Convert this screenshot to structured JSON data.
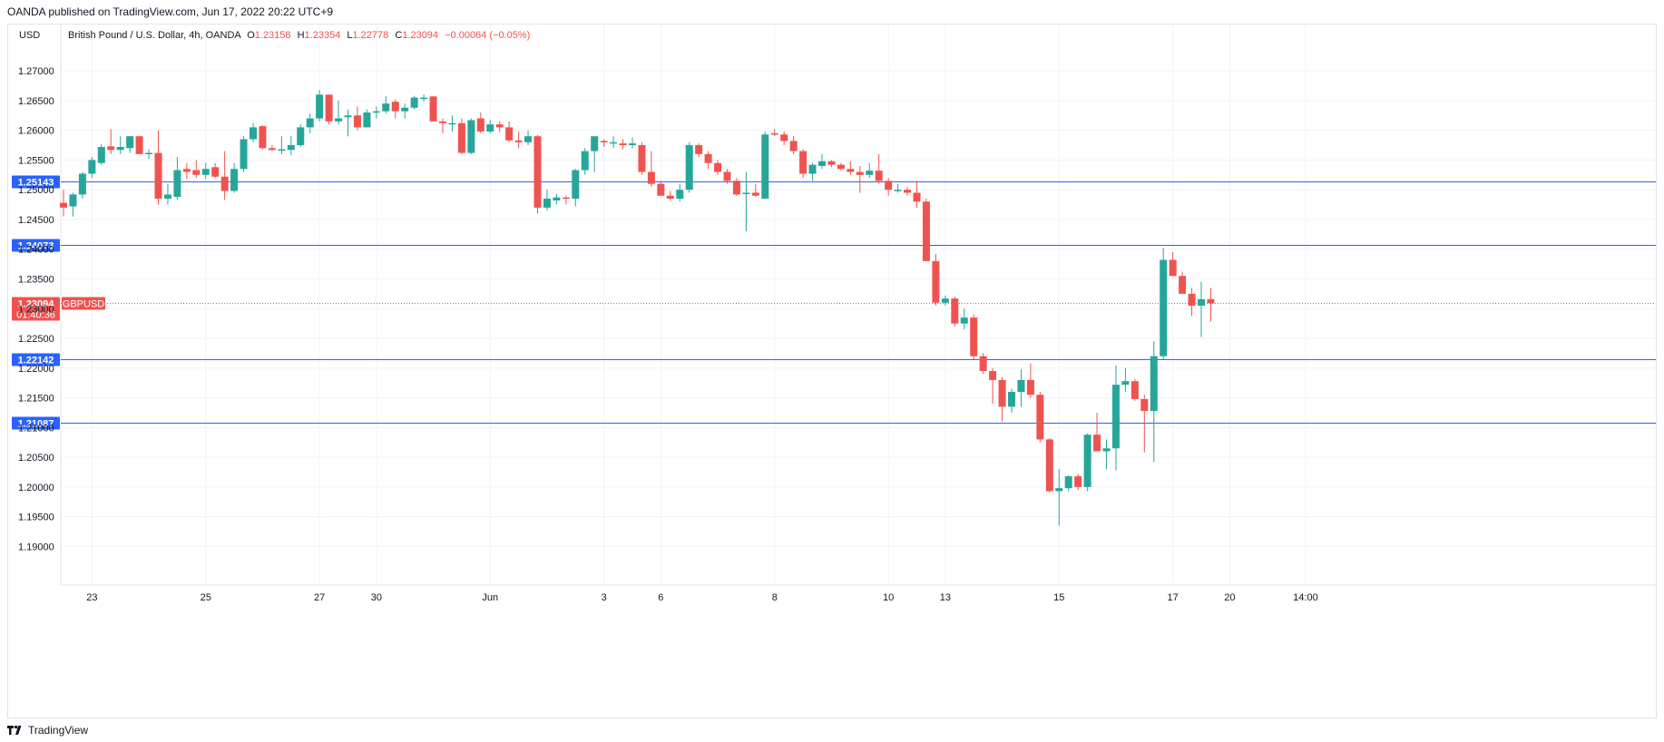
{
  "header": {
    "published_text": "OANDA published on TradingView.com, Jun 17, 2022 20:22 UTC+9"
  },
  "footer": {
    "brand": "TradingView",
    "logo_icon": "tradingview-logo-icon"
  },
  "chart_data": {
    "type": "candlestick",
    "currency_label": "USD",
    "legend": {
      "symbol_text": "British Pound / U.S. Dollar, 4h, OANDA",
      "open_label": "O",
      "open_value": "1.23158",
      "high_label": "H",
      "high_value": "1.23354",
      "low_label": "L",
      "low_value": "1.22778",
      "close_label": "C",
      "close_value": "1.23094",
      "change_text": "−0.00064 (−0.05%)"
    },
    "y_axis": {
      "min": 1.1835,
      "max": 1.2778,
      "ticks": [
        "1.27000",
        "1.26500",
        "1.26000",
        "1.25500",
        "1.25000",
        "1.24500",
        "1.24000",
        "1.23500",
        "1.23000",
        "1.22500",
        "1.22000",
        "1.21500",
        "1.21000",
        "1.20500",
        "1.20000",
        "1.19500",
        "1.19000"
      ]
    },
    "x_axis": {
      "labels": [
        {
          "label": "23",
          "bar": 3
        },
        {
          "label": "25",
          "bar": 15
        },
        {
          "label": "27",
          "bar": 27
        },
        {
          "label": "30",
          "bar": 33
        },
        {
          "label": "Jun",
          "bar": 45
        },
        {
          "label": "3",
          "bar": 57
        },
        {
          "label": "6",
          "bar": 63
        },
        {
          "label": "8",
          "bar": 75
        },
        {
          "label": "10",
          "bar": 87
        },
        {
          "label": "13",
          "bar": 93
        },
        {
          "label": "15",
          "bar": 105
        },
        {
          "label": "17",
          "bar": 117
        },
        {
          "label": "20",
          "bar": 123
        },
        {
          "label": "14:00",
          "bar": 131
        }
      ]
    },
    "horizontal_lines": [
      {
        "value": 1.25143,
        "label": "1.25143",
        "color": "#2962ff"
      },
      {
        "value": 1.24073,
        "label": "1.24073",
        "color": "#2962ff"
      },
      {
        "value": 1.22142,
        "label": "1.22142",
        "color": "#2962ff"
      },
      {
        "value": 1.21087,
        "label": "1.21087",
        "color": "#2962ff"
      }
    ],
    "last_price": {
      "value": 1.23094,
      "label": "1.23094",
      "countdown": "01:40:36",
      "symbol": "GBPUSD",
      "color": "#ef5350"
    },
    "colors": {
      "up": "#26a69a",
      "down": "#ef5350",
      "grid": "#f0f3fa",
      "axis_text": "#131722"
    },
    "candles": [
      [
        1.2478,
        1.25,
        1.2455,
        1.247
      ],
      [
        1.2472,
        1.2495,
        1.2455,
        1.2492
      ],
      [
        1.2492,
        1.253,
        1.2485,
        1.2527
      ],
      [
        1.2527,
        1.2555,
        1.252,
        1.255
      ],
      [
        1.2545,
        1.2577,
        1.2542,
        1.2572
      ],
      [
        1.2573,
        1.2602,
        1.256,
        1.2567
      ],
      [
        1.2567,
        1.259,
        1.256,
        1.2572
      ],
      [
        1.257,
        1.259,
        1.2562,
        1.259
      ],
      [
        1.259,
        1.259,
        1.256,
        1.256
      ],
      [
        1.256,
        1.2568,
        1.2552,
        1.2562
      ],
      [
        1.2562,
        1.26,
        1.2475,
        1.2485
      ],
      [
        1.2485,
        1.251,
        1.2475,
        1.2492
      ],
      [
        1.2488,
        1.2555,
        1.2483,
        1.2533
      ],
      [
        1.2535,
        1.2545,
        1.2518,
        1.253
      ],
      [
        1.2533,
        1.255,
        1.252,
        1.2525
      ],
      [
        1.2525,
        1.2545,
        1.2518,
        1.2535
      ],
      [
        1.2538,
        1.2545,
        1.252,
        1.2522
      ],
      [
        1.2522,
        1.2565,
        1.2483,
        1.2498
      ],
      [
        1.2498,
        1.2545,
        1.2495,
        1.2535
      ],
      [
        1.2535,
        1.259,
        1.253,
        1.2585
      ],
      [
        1.2585,
        1.2612,
        1.258,
        1.2605
      ],
      [
        1.2607,
        1.2608,
        1.2568,
        1.257
      ],
      [
        1.257,
        1.2575,
        1.2565,
        1.2567
      ],
      [
        1.2567,
        1.259,
        1.256,
        1.2568
      ],
      [
        1.2567,
        1.259,
        1.2558,
        1.2575
      ],
      [
        1.2575,
        1.261,
        1.2572,
        1.2605
      ],
      [
        1.2605,
        1.2628,
        1.2595,
        1.262
      ],
      [
        1.262,
        1.2668,
        1.2615,
        1.266
      ],
      [
        1.266,
        1.266,
        1.261,
        1.2615
      ],
      [
        1.2615,
        1.265,
        1.261,
        1.262
      ],
      [
        1.2622,
        1.2635,
        1.259,
        1.2625
      ],
      [
        1.2625,
        1.264,
        1.26,
        1.2605
      ],
      [
        1.2605,
        1.2635,
        1.2605,
        1.263
      ],
      [
        1.2632,
        1.264,
        1.262,
        1.2632
      ],
      [
        1.2632,
        1.2658,
        1.2628,
        1.2645
      ],
      [
        1.2648,
        1.2652,
        1.262,
        1.2632
      ],
      [
        1.2632,
        1.2645,
        1.262,
        1.2638
      ],
      [
        1.2638,
        1.2658,
        1.2635,
        1.2655
      ],
      [
        1.2653,
        1.266,
        1.2648,
        1.2655
      ],
      [
        1.2657,
        1.2657,
        1.2615,
        1.2615
      ],
      [
        1.2615,
        1.262,
        1.2595,
        1.2612
      ],
      [
        1.2612,
        1.2625,
        1.2598,
        1.2612
      ],
      [
        1.2612,
        1.262,
        1.256,
        1.2562
      ],
      [
        1.2562,
        1.262,
        1.256,
        1.2617
      ],
      [
        1.262,
        1.263,
        1.2595,
        1.2598
      ],
      [
        1.2598,
        1.2618,
        1.2595,
        1.261
      ],
      [
        1.261,
        1.2615,
        1.2597,
        1.2605
      ],
      [
        1.2605,
        1.2615,
        1.258,
        1.2583
      ],
      [
        1.2583,
        1.2598,
        1.257,
        1.258
      ],
      [
        1.258,
        1.26,
        1.2575,
        1.259
      ],
      [
        1.259,
        1.2592,
        1.246,
        1.247
      ],
      [
        1.247,
        1.25,
        1.2465,
        1.2485
      ],
      [
        1.2482,
        1.2493,
        1.2475,
        1.2487
      ],
      [
        1.2487,
        1.249,
        1.2475,
        1.2485
      ],
      [
        1.2485,
        1.2535,
        1.2472,
        1.2533
      ],
      [
        1.2533,
        1.257,
        1.2525,
        1.2565
      ],
      [
        1.2565,
        1.2582,
        1.253,
        1.259
      ],
      [
        1.2582,
        1.2585,
        1.2572,
        1.258
      ],
      [
        1.258,
        1.259,
        1.257,
        1.258
      ],
      [
        1.2578,
        1.2585,
        1.2568,
        1.2575
      ],
      [
        1.2575,
        1.2588,
        1.257,
        1.2578
      ],
      [
        1.2575,
        1.258,
        1.2525,
        1.253
      ],
      [
        1.253,
        1.2565,
        1.2505,
        1.251
      ],
      [
        1.251,
        1.2515,
        1.249,
        1.249
      ],
      [
        1.249,
        1.2498,
        1.2482,
        1.2485
      ],
      [
        1.2485,
        1.251,
        1.248,
        1.25
      ],
      [
        1.25,
        1.258,
        1.2495,
        1.2575
      ],
      [
        1.2575,
        1.2578,
        1.2555,
        1.256
      ],
      [
        1.256,
        1.2565,
        1.2535,
        1.2545
      ],
      [
        1.2545,
        1.255,
        1.2525,
        1.253
      ],
      [
        1.253,
        1.2535,
        1.251,
        1.2515
      ],
      [
        1.2515,
        1.252,
        1.249,
        1.2492
      ],
      [
        1.2493,
        1.253,
        1.243,
        1.2495
      ],
      [
        1.2495,
        1.251,
        1.2488,
        1.249
      ],
      [
        1.2485,
        1.2598,
        1.2485,
        1.2593
      ],
      [
        1.2595,
        1.2602,
        1.259,
        1.2593
      ],
      [
        1.2593,
        1.2598,
        1.2575,
        1.2582
      ],
      [
        1.2582,
        1.259,
        1.256,
        1.2565
      ],
      [
        1.2565,
        1.2568,
        1.252,
        1.2527
      ],
      [
        1.2527,
        1.2545,
        1.2515,
        1.2542
      ],
      [
        1.254,
        1.256,
        1.2535,
        1.2548
      ],
      [
        1.2548,
        1.255,
        1.2538,
        1.2542
      ],
      [
        1.2542,
        1.2545,
        1.2532,
        1.2535
      ],
      [
        1.2535,
        1.2548,
        1.2525,
        1.253
      ],
      [
        1.253,
        1.254,
        1.2495,
        1.2525
      ],
      [
        1.2525,
        1.2545,
        1.252,
        1.2532
      ],
      [
        1.2532,
        1.256,
        1.251,
        1.2515
      ],
      [
        1.2515,
        1.252,
        1.249,
        1.25
      ],
      [
        1.25,
        1.251,
        1.2495,
        1.25
      ],
      [
        1.25,
        1.2505,
        1.249,
        1.2495
      ],
      [
        1.2495,
        1.2515,
        1.247,
        1.248
      ],
      [
        1.248,
        1.2485,
        1.238,
        1.238
      ],
      [
        1.238,
        1.2392,
        1.2305,
        1.231
      ],
      [
        1.231,
        1.2322,
        1.2305,
        1.2317
      ],
      [
        1.2317,
        1.232,
        1.227,
        1.2275
      ],
      [
        1.2275,
        1.23,
        1.2265,
        1.2285
      ],
      [
        1.2285,
        1.229,
        1.2215,
        1.222
      ],
      [
        1.222,
        1.2225,
        1.219,
        1.2195
      ],
      [
        1.2195,
        1.22,
        1.214,
        1.218
      ],
      [
        1.218,
        1.2185,
        1.211,
        1.2135
      ],
      [
        1.2135,
        1.2165,
        1.2125,
        1.216
      ],
      [
        1.216,
        1.2198,
        1.2135,
        1.218
      ],
      [
        1.218,
        1.2208,
        1.215,
        1.2155
      ],
      [
        1.2155,
        1.216,
        1.2075,
        1.208
      ],
      [
        1.208,
        1.2082,
        1.199,
        1.1993
      ],
      [
        1.1993,
        1.203,
        1.1935,
        1.1998
      ],
      [
        1.1998,
        1.202,
        1.1993,
        1.2018
      ],
      [
        1.2018,
        1.2022,
        1.1995,
        1.2
      ],
      [
        1.2,
        1.209,
        1.1993,
        1.2088
      ],
      [
        1.2088,
        1.2125,
        1.206,
        1.206
      ],
      [
        1.206,
        1.208,
        1.203,
        1.2065
      ],
      [
        1.2065,
        1.2205,
        1.2028,
        1.2172
      ],
      [
        1.2172,
        1.22,
        1.216,
        1.2178
      ],
      [
        1.2178,
        1.2182,
        1.2145,
        1.2148
      ],
      [
        1.2148,
        1.2155,
        1.2058,
        1.2128
      ],
      [
        1.2128,
        1.2245,
        1.2042,
        1.222
      ],
      [
        1.222,
        1.2402,
        1.2215,
        1.2382
      ],
      [
        1.2382,
        1.2395,
        1.2355,
        1.2355
      ],
      [
        1.2355,
        1.2362,
        1.2325,
        1.2325
      ],
      [
        1.2325,
        1.2335,
        1.2288,
        1.2305
      ],
      [
        1.2305,
        1.2345,
        1.2252,
        1.2316
      ],
      [
        1.2316,
        1.2335,
        1.2278,
        1.2309
      ]
    ]
  }
}
